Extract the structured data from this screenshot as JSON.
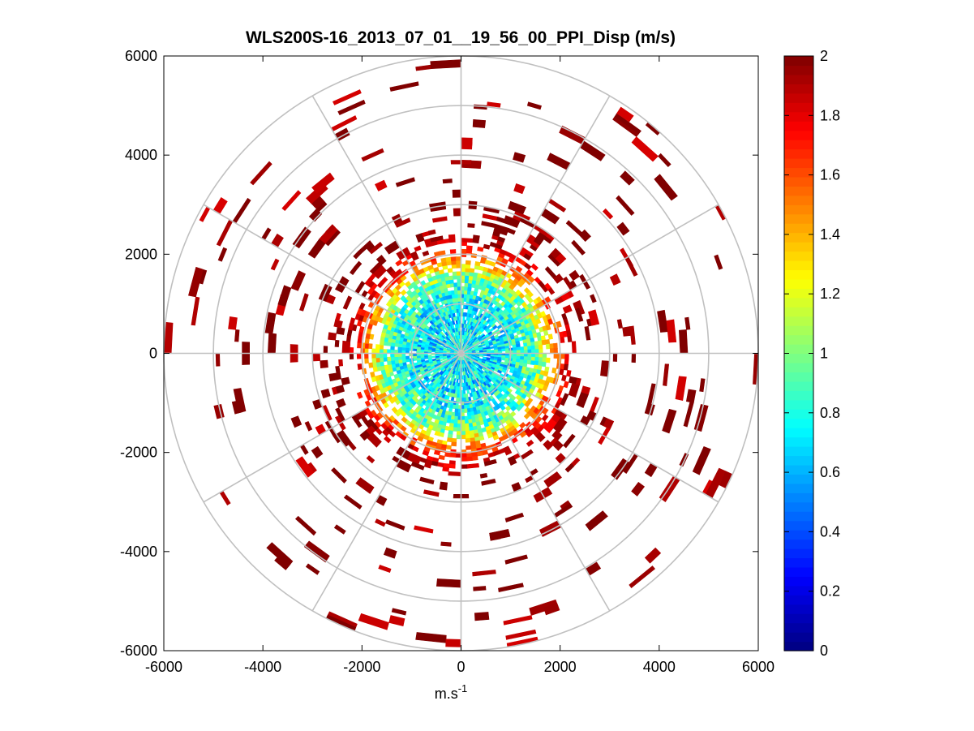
{
  "chart_data": {
    "type": "heatmap",
    "subtype": "polar-ppi",
    "title": "WLS200S-16_2013_07_01__19_56_00_PPI_Disp (m/s)",
    "xlabel": "m.s",
    "xlabel_superscript": "-1",
    "ylabel": "",
    "xlim": [
      -6000,
      6000
    ],
    "ylim": [
      -6000,
      6000
    ],
    "xticks": [
      -6000,
      -4000,
      -2000,
      0,
      2000,
      4000,
      6000
    ],
    "yticks": [
      6000,
      4000,
      2000,
      0,
      -2000,
      -4000,
      -6000
    ],
    "xtick_labels": [
      "-6000",
      "-4000",
      "-2000",
      "0",
      "2000",
      "4000",
      "6000"
    ],
    "ytick_labels": [
      "6000",
      "4000",
      "2000",
      "0",
      "-2000",
      "-4000",
      "-6000"
    ],
    "polar_grid": {
      "rings": [
        1000,
        2000,
        3000,
        4000,
        5000,
        6000
      ],
      "spokes_deg": [
        0,
        30,
        60,
        90,
        120,
        150,
        180,
        210,
        240,
        270,
        300,
        330
      ]
    },
    "colorbar": {
      "colormap": "jet",
      "range": [
        0,
        2
      ],
      "ticks": [
        0,
        0.2,
        0.4,
        0.6,
        0.8,
        1,
        1.2,
        1.4,
        1.6,
        1.8,
        2
      ],
      "tick_labels": [
        "0",
        "0.2",
        "0.4",
        "0.6",
        "0.8",
        "1",
        "1.2",
        "1.4",
        "1.6",
        "1.8",
        "2"
      ]
    },
    "field_profile": {
      "description": "Dispersion vs range: inner core ~0.5-1.0 m/s, rising to >=2 m/s beyond ~2000 m; sparse saturated bins out to ~6000 m",
      "ranges": [
        0,
        500,
        1000,
        1500,
        1800,
        2100,
        2400,
        3000,
        6000
      ],
      "values": [
        0.8,
        0.7,
        0.75,
        0.95,
        1.4,
        1.8,
        2.0,
        2.0,
        2.0
      ]
    }
  }
}
